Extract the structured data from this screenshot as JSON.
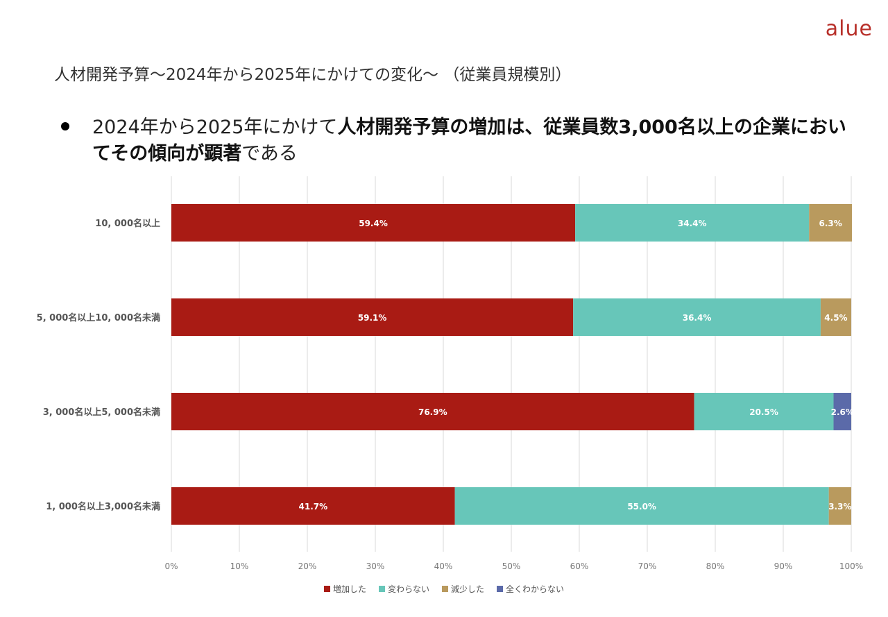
{
  "logo": "alue",
  "title": "人材開発予算～2024年から2025年にかけての変化～ （従業員規模別）",
  "headline": {
    "part1": "2024年から2025年にかけて",
    "bold": "人材開発予算の増加は、従業員数3,000名以上の企業においてその傾向が顕著",
    "part2": "である"
  },
  "chart_data": {
    "type": "bar",
    "orientation": "horizontal",
    "stacked": true,
    "categories": [
      "10, 000名以上",
      "5, 000名以上10, 000名未満",
      "3, 000名以上5, 000名未満",
      "1, 000名以上3,000名未満"
    ],
    "series": [
      {
        "name": "増加した",
        "color": "#a91b14",
        "values": [
          59.4,
          59.1,
          76.9,
          41.7
        ],
        "labels": [
          "59.4%",
          "59.1%",
          "76.9%",
          "41.7%"
        ]
      },
      {
        "name": "変わらない",
        "color": "#67c6b9",
        "values": [
          34.4,
          36.4,
          20.5,
          55.0
        ],
        "labels": [
          "34.4%",
          "36.4%",
          "20.5%",
          "55.0%"
        ]
      },
      {
        "name": "減少した",
        "color": "#b99a5e",
        "values": [
          6.3,
          4.5,
          0,
          3.3
        ],
        "labels": [
          "6.3%",
          "4.5%",
          "",
          "3.3%"
        ]
      },
      {
        "name": "全くわからない",
        "color": "#5b6aa9",
        "values": [
          0,
          0,
          2.6,
          0
        ],
        "labels": [
          "",
          "",
          "2.6%",
          ""
        ]
      }
    ],
    "xticks": [
      "0%",
      "10%",
      "20%",
      "30%",
      "40%",
      "50%",
      "60%",
      "70%",
      "80%",
      "90%",
      "100%"
    ],
    "xlim": [
      0,
      100
    ],
    "grid": true,
    "legend": "bottom-center"
  }
}
